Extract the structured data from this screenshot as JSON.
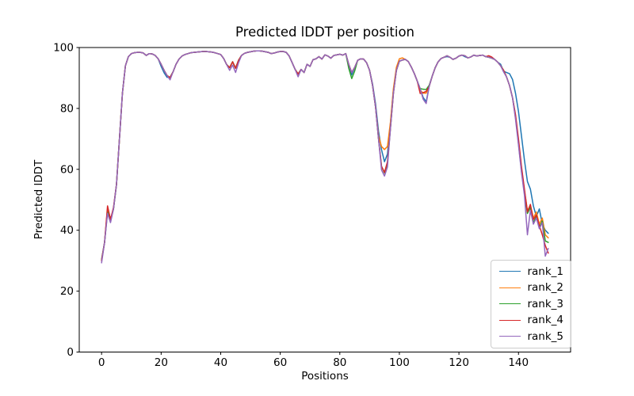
{
  "chart_data": {
    "type": "line",
    "title": "Predicted lDDT per position",
    "xlabel": "Positions",
    "ylabel": "Predicted lDDT",
    "xlim": [
      -7.5,
      157.5
    ],
    "ylim": [
      0,
      100
    ],
    "x_ticks": [
      0,
      20,
      40,
      60,
      80,
      100,
      120,
      140
    ],
    "y_ticks": [
      0,
      20,
      40,
      60,
      80,
      100
    ],
    "grid": false,
    "legend_position": "lower right",
    "x_start": 0,
    "x_step": 1,
    "series": [
      {
        "name": "rank_1",
        "color": "#1f77b4",
        "values": [
          30.5,
          36,
          47,
          43.5,
          47,
          55,
          70,
          85,
          94,
          97,
          98,
          98.3,
          98.4,
          98.4,
          98.2,
          97.4,
          98,
          97.9,
          97.4,
          96.3,
          93.8,
          91.7,
          90.2,
          90.3,
          92,
          94.5,
          96.2,
          97.2,
          97.7,
          98,
          98.3,
          98.4,
          98.5,
          98.6,
          98.7,
          98.7,
          98.6,
          98.5,
          98.3,
          98,
          97.7,
          96.4,
          94.4,
          93.4,
          95.3,
          93.2,
          95.8,
          97.4,
          98.1,
          98.4,
          98.6,
          98.8,
          98.9,
          98.9,
          98.8,
          98.6,
          98.4,
          98,
          98.2,
          98.5,
          98.7,
          98.7,
          98.4,
          97.2,
          95,
          92.8,
          91.3,
          92.8,
          91.8,
          94.5,
          93.8,
          96,
          96.3,
          97,
          96.2,
          97.6,
          97.2,
          96.5,
          97.4,
          97.6,
          97.8,
          97.5,
          98,
          94.5,
          91,
          93.5,
          95.8,
          96.3,
          96.2,
          95,
          92.5,
          88,
          81.5,
          72.5,
          66.5,
          62.5,
          65,
          75,
          86,
          92.5,
          95.5,
          95.9,
          96.1,
          95.4,
          93.6,
          91.5,
          89,
          86.4,
          83.6,
          82.2,
          87.2,
          90.5,
          93.3,
          95.3,
          96.4,
          96.8,
          97,
          96.8,
          96.1,
          96.5,
          97.2,
          97.5,
          97,
          96.6,
          96.9,
          97.5,
          97.2,
          97.4,
          97.5,
          97,
          96.8,
          96.5,
          96.1,
          95.2,
          94.5,
          92.2,
          91.8,
          91.4,
          89.5,
          85,
          79,
          71,
          63,
          56,
          53.5,
          48,
          44.5,
          47,
          42,
          40,
          39
        ]
      },
      {
        "name": "rank_2",
        "color": "#ff7f0e",
        "values": [
          30.2,
          36,
          47,
          43.5,
          47,
          55,
          70,
          85,
          94,
          97,
          98,
          98.3,
          98.4,
          98.4,
          98.2,
          97.4,
          98,
          97.9,
          97.4,
          96.3,
          94.5,
          92.5,
          90.8,
          90.1,
          92,
          94.5,
          96.2,
          97.2,
          97.7,
          98,
          98.3,
          98.4,
          98.5,
          98.6,
          98.7,
          98.7,
          98.6,
          98.5,
          98.3,
          98,
          97.7,
          96.4,
          94.4,
          93.4,
          95.3,
          93.2,
          95.8,
          97.4,
          98.1,
          98.4,
          98.6,
          98.8,
          98.9,
          98.9,
          98.8,
          98.6,
          98.4,
          98,
          98.2,
          98.5,
          98.7,
          98.7,
          98.4,
          97.2,
          95,
          92.8,
          91.3,
          92.8,
          91.8,
          94.5,
          93.8,
          96,
          96.3,
          97,
          96.2,
          97.6,
          97.2,
          96.5,
          97.4,
          97.6,
          97.8,
          97.5,
          98,
          94.5,
          91.8,
          93.5,
          95.8,
          96.3,
          96.2,
          95,
          92.5,
          87.5,
          80.5,
          71,
          67.5,
          66.5,
          67.5,
          75.5,
          86.5,
          93.5,
          96.3,
          96.6,
          96.1,
          95.4,
          93.6,
          91.5,
          89,
          86,
          85,
          85,
          87.2,
          90.5,
          93.3,
          95.3,
          96.4,
          96.8,
          97.3,
          96.8,
          96.1,
          96.5,
          97.2,
          97.5,
          97.3,
          96.6,
          96.9,
          97.5,
          97.2,
          97.4,
          97.5,
          97,
          96.8,
          96.5,
          96.1,
          95.2,
          94,
          92.5,
          90.3,
          87.5,
          83.5,
          77,
          69,
          60.5,
          53,
          46.5,
          48,
          44,
          46,
          42,
          44,
          38.5,
          37.5
        ]
      },
      {
        "name": "rank_3",
        "color": "#2ca02c",
        "values": [
          30,
          36,
          46,
          43,
          47,
          55,
          70,
          85,
          94,
          97,
          98,
          98.3,
          98.4,
          98.4,
          98.2,
          97.4,
          98,
          97.9,
          97.4,
          96.3,
          94.5,
          92.5,
          90.8,
          90.1,
          92,
          94.5,
          96.2,
          97.2,
          97.7,
          98,
          98.3,
          98.4,
          98.5,
          98.6,
          98.7,
          98.7,
          98.6,
          98.5,
          98.3,
          98,
          97.7,
          96.4,
          94.4,
          93.4,
          95.3,
          93.2,
          95.8,
          97.4,
          98.1,
          98.4,
          98.6,
          98.8,
          98.9,
          98.9,
          98.8,
          98.6,
          98.4,
          98,
          98.2,
          98.5,
          98.7,
          98.7,
          98.4,
          97.2,
          95,
          92.8,
          91.3,
          92.8,
          91.8,
          94.5,
          93.8,
          96,
          96.3,
          97,
          96.2,
          97.6,
          97.2,
          96.5,
          97.4,
          97.6,
          97.8,
          97.5,
          98,
          93.2,
          89.8,
          92.3,
          95.8,
          96.3,
          96.2,
          95,
          92.5,
          87.5,
          80.5,
          70,
          61,
          58.8,
          62,
          73.5,
          85,
          92.5,
          95.5,
          95.9,
          96.1,
          95.4,
          93.6,
          91.5,
          89,
          86.5,
          86.3,
          86.2,
          87.6,
          90.5,
          93.3,
          95.3,
          96.4,
          96.8,
          97.3,
          96.8,
          96.1,
          96.5,
          97.2,
          97.5,
          97.3,
          96.6,
          96.9,
          97.5,
          97.2,
          97.4,
          97.5,
          97,
          96.8,
          96.5,
          96.1,
          95.2,
          94,
          92.5,
          90.3,
          87.5,
          83.5,
          77.5,
          68.5,
          59.5,
          52,
          45.5,
          47.5,
          42.5,
          44.5,
          41,
          43,
          36.5,
          36
        ]
      },
      {
        "name": "rank_4",
        "color": "#d62728",
        "values": [
          30,
          36,
          48,
          43.5,
          47.5,
          55,
          70,
          85,
          94,
          97,
          98,
          98.3,
          98.4,
          98.4,
          98.2,
          97.4,
          98,
          97.9,
          97.4,
          96.3,
          94.5,
          92.5,
          90.8,
          90.1,
          92,
          94.5,
          96.2,
          97.2,
          97.7,
          98,
          98.3,
          98.4,
          98.5,
          98.6,
          98.7,
          98.7,
          98.6,
          98.5,
          98.3,
          98,
          97.7,
          96.4,
          94.4,
          93.4,
          95.3,
          93.2,
          95.8,
          97.4,
          98.1,
          98.4,
          98.6,
          98.8,
          98.9,
          98.9,
          98.8,
          98.6,
          98.4,
          98,
          98.2,
          98.5,
          98.7,
          98.7,
          98.4,
          97.2,
          95,
          92.8,
          91.3,
          92.8,
          91.8,
          94.5,
          93.8,
          96,
          96.3,
          97,
          96.2,
          97.6,
          97.2,
          96.5,
          97.4,
          97.6,
          97.8,
          97.5,
          98,
          94.5,
          91.8,
          93.5,
          95.8,
          96.3,
          96.2,
          95,
          92.5,
          87.5,
          80.5,
          70,
          61,
          59,
          62.5,
          73.5,
          85,
          92.5,
          95.5,
          95.9,
          96.1,
          95.4,
          93.6,
          91.5,
          89,
          84.9,
          85.2,
          85.6,
          87.2,
          90.5,
          93.3,
          95.3,
          96.4,
          96.8,
          97.3,
          96.8,
          96.1,
          96.5,
          97.2,
          97.5,
          97.3,
          96.6,
          96.9,
          97.5,
          97.2,
          97.4,
          97.5,
          97,
          97.3,
          96.9,
          96.1,
          95.2,
          94,
          92.5,
          90.3,
          87.5,
          83.5,
          78,
          70,
          61,
          53.5,
          46,
          48.5,
          43.5,
          45,
          41.5,
          38.5,
          35,
          32.5
        ]
      },
      {
        "name": "rank_5",
        "color": "#9467bd",
        "values": [
          29.3,
          36,
          45.5,
          42.5,
          47,
          55,
          70,
          85,
          94,
          97,
          98,
          98.3,
          98.4,
          98.4,
          98.2,
          97.4,
          98,
          97.9,
          97.4,
          96.3,
          94.5,
          92.5,
          90.8,
          89.4,
          92,
          94.5,
          96.2,
          97.2,
          97.7,
          98,
          98.3,
          98.4,
          98.5,
          98.6,
          98.7,
          98.7,
          98.6,
          98.5,
          98.3,
          98,
          97.7,
          96.4,
          94.4,
          92.5,
          94.2,
          91.8,
          95,
          97.4,
          98.1,
          98.4,
          98.6,
          98.8,
          98.9,
          98.9,
          98.8,
          98.6,
          98.4,
          98,
          98.2,
          98.5,
          98.7,
          98.7,
          98.4,
          97.2,
          95,
          92.8,
          90.4,
          92.8,
          91.8,
          94.5,
          93.8,
          96,
          96.3,
          97,
          96.2,
          97.6,
          97.2,
          96.5,
          97.4,
          97.6,
          97.8,
          97.5,
          98,
          94.5,
          91.8,
          93.5,
          95.8,
          96.3,
          96.2,
          95,
          92.5,
          87.5,
          80.5,
          70,
          59.8,
          57.8,
          60.8,
          73.5,
          85,
          92.5,
          95.5,
          95.9,
          96.1,
          95.4,
          93.6,
          91.5,
          89,
          86.4,
          83,
          81.6,
          87.2,
          90.5,
          93.3,
          95.3,
          96.4,
          96.8,
          97.3,
          96.8,
          96.1,
          96.5,
          97.2,
          97.5,
          97.3,
          96.6,
          96.9,
          97.5,
          97.2,
          97.4,
          97.5,
          97,
          96.8,
          96.5,
          96.1,
          95.2,
          94,
          92,
          90.3,
          87.5,
          83.5,
          76.5,
          68,
          59,
          51.5,
          38.5,
          46.5,
          42,
          44,
          40.5,
          42.5,
          31.5,
          34
        ]
      }
    ]
  }
}
